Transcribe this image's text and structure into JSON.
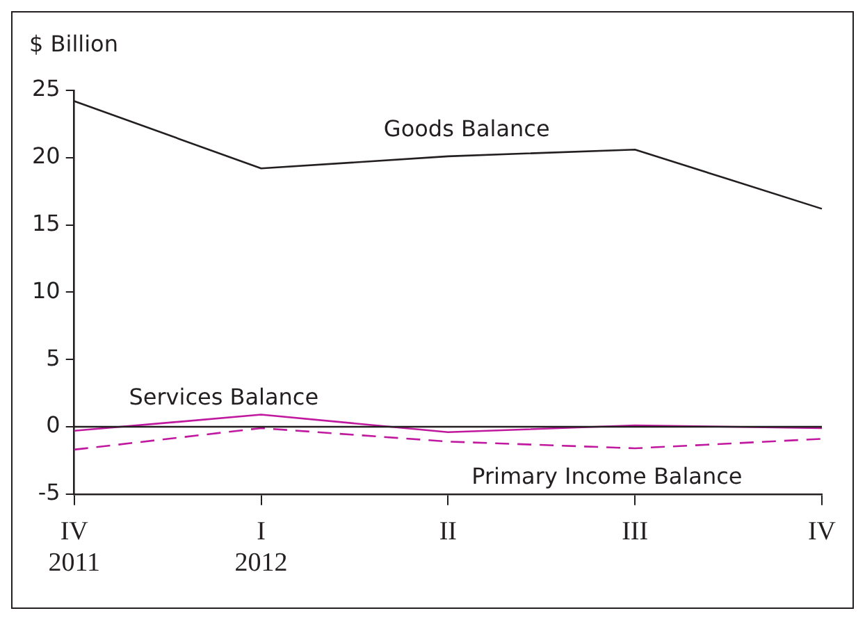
{
  "chart_data": {
    "type": "line",
    "ylabel": "$ Billion",
    "categories": [
      "IV\n2011",
      "I\n2012",
      "II",
      "III",
      "IV"
    ],
    "series": [
      {
        "name": "Goods Balance",
        "color": "#231f20",
        "values": [
          24.2,
          19.2,
          20.1,
          20.6,
          16.2
        ]
      },
      {
        "name": "Services Balance",
        "color": "#c0189e",
        "values": [
          -0.3,
          0.9,
          -0.4,
          0.1,
          -0.1
        ]
      },
      {
        "name": "Primary Income Balance",
        "color": "#c0189e",
        "line_style": "dashed",
        "values": [
          -1.7,
          -0.1,
          -1.1,
          -1.6,
          -0.9
        ]
      }
    ],
    "ylim": [
      -5,
      25
    ],
    "yticks": [
      -5,
      0,
      5,
      10,
      15,
      20,
      25
    ],
    "ref_lines": [
      {
        "axis": "y",
        "value": 0,
        "color": "#231f20"
      }
    ],
    "grid": false,
    "legend": false,
    "marker": "none"
  }
}
